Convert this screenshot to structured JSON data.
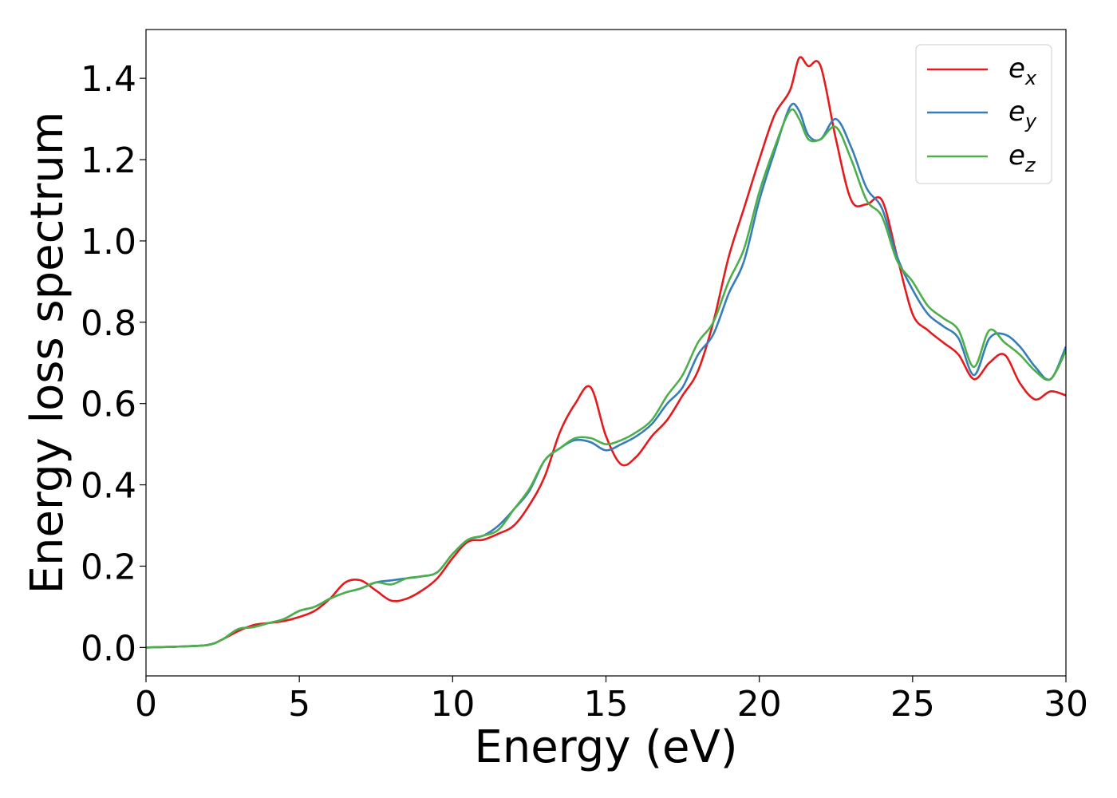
{
  "chart_data": {
    "type": "line",
    "title": "",
    "xlabel": "Energy (eV)",
    "ylabel": "Energy loss spectrum",
    "xlim": [
      0,
      30
    ],
    "ylim": [
      -0.07,
      1.52
    ],
    "xticks": [
      0,
      5,
      10,
      15,
      20,
      25,
      30
    ],
    "xtick_labels": [
      "0",
      "5",
      "10",
      "15",
      "20",
      "25",
      "30"
    ],
    "yticks": [
      0.0,
      0.2,
      0.4,
      0.6,
      0.8,
      1.0,
      1.2,
      1.4
    ],
    "ytick_labels": [
      "0.0",
      "0.2",
      "0.4",
      "0.6",
      "0.8",
      "1.0",
      "1.2",
      "1.4"
    ],
    "grid": false,
    "legend": "top-right",
    "series": [
      {
        "name": "e_x",
        "label_main": "e",
        "label_sub": "x",
        "color": "#e41a1c",
        "x": [
          0,
          1,
          2,
          2.5,
          3,
          3.5,
          4,
          4.5,
          5,
          5.5,
          6,
          6.5,
          7,
          7.5,
          8,
          8.5,
          9,
          9.5,
          10,
          10.5,
          11,
          11.5,
          12,
          12.5,
          13,
          13.5,
          14,
          14.5,
          15,
          15.5,
          16,
          16.5,
          17,
          17.5,
          18,
          18.5,
          19,
          19.5,
          20,
          20.5,
          21,
          21.3,
          21.6,
          22,
          22.5,
          23,
          23.5,
          24,
          24.5,
          25,
          25.5,
          26,
          26.5,
          27,
          27.5,
          28,
          28.5,
          29,
          29.5,
          30
        ],
        "y": [
          0.0,
          0.002,
          0.006,
          0.02,
          0.04,
          0.055,
          0.06,
          0.065,
          0.075,
          0.09,
          0.12,
          0.16,
          0.165,
          0.14,
          0.115,
          0.12,
          0.14,
          0.17,
          0.22,
          0.26,
          0.265,
          0.28,
          0.3,
          0.35,
          0.42,
          0.53,
          0.6,
          0.64,
          0.52,
          0.45,
          0.47,
          0.52,
          0.56,
          0.62,
          0.68,
          0.8,
          0.96,
          1.08,
          1.2,
          1.31,
          1.37,
          1.45,
          1.43,
          1.43,
          1.25,
          1.1,
          1.09,
          1.1,
          0.96,
          0.82,
          0.78,
          0.75,
          0.72,
          0.66,
          0.7,
          0.72,
          0.65,
          0.61,
          0.63,
          0.62
        ]
      },
      {
        "name": "e_y",
        "label_main": "e",
        "label_sub": "y",
        "color": "#377eb8",
        "x": [
          0,
          1,
          2,
          2.5,
          3,
          3.5,
          4,
          4.5,
          5,
          5.5,
          6,
          6.5,
          7,
          7.5,
          8,
          8.5,
          9,
          9.5,
          10,
          10.5,
          11,
          11.5,
          12,
          12.5,
          13,
          13.5,
          14,
          14.5,
          15,
          15.5,
          16,
          16.5,
          17,
          17.5,
          18,
          18.5,
          19,
          19.5,
          20,
          20.5,
          21,
          21.3,
          21.6,
          22,
          22.5,
          23,
          23.5,
          24,
          24.5,
          25,
          25.5,
          26,
          26.5,
          27,
          27.5,
          28,
          28.5,
          29,
          29.5,
          30
        ],
        "y": [
          0.0,
          0.002,
          0.006,
          0.02,
          0.045,
          0.05,
          0.06,
          0.07,
          0.09,
          0.1,
          0.12,
          0.135,
          0.145,
          0.16,
          0.165,
          0.17,
          0.175,
          0.185,
          0.23,
          0.265,
          0.275,
          0.3,
          0.34,
          0.385,
          0.46,
          0.49,
          0.51,
          0.505,
          0.485,
          0.5,
          0.52,
          0.55,
          0.6,
          0.64,
          0.72,
          0.77,
          0.87,
          0.95,
          1.1,
          1.22,
          1.33,
          1.32,
          1.26,
          1.25,
          1.3,
          1.23,
          1.13,
          1.08,
          0.96,
          0.88,
          0.82,
          0.79,
          0.76,
          0.67,
          0.76,
          0.77,
          0.74,
          0.69,
          0.66,
          0.74
        ]
      },
      {
        "name": "e_z",
        "label_main": "e",
        "label_sub": "z",
        "color": "#4daf4a",
        "x": [
          0,
          1,
          2,
          2.5,
          3,
          3.5,
          4,
          4.5,
          5,
          5.5,
          6,
          6.5,
          7,
          7.5,
          8,
          8.5,
          9,
          9.5,
          10,
          10.5,
          11,
          11.5,
          12,
          12.5,
          13,
          13.5,
          14,
          14.5,
          15,
          15.5,
          16,
          16.5,
          17,
          17.5,
          18,
          18.5,
          19,
          19.5,
          20,
          20.5,
          21,
          21.3,
          21.6,
          22,
          22.5,
          23,
          23.5,
          24,
          24.5,
          25,
          25.5,
          26,
          26.5,
          27,
          27.5,
          28,
          28.5,
          29,
          29.5,
          30
        ],
        "y": [
          0.0,
          0.002,
          0.006,
          0.02,
          0.045,
          0.05,
          0.06,
          0.07,
          0.09,
          0.1,
          0.12,
          0.135,
          0.145,
          0.16,
          0.155,
          0.17,
          0.175,
          0.185,
          0.23,
          0.265,
          0.275,
          0.29,
          0.34,
          0.39,
          0.46,
          0.49,
          0.515,
          0.515,
          0.5,
          0.51,
          0.53,
          0.56,
          0.62,
          0.67,
          0.75,
          0.8,
          0.9,
          0.98,
          1.12,
          1.23,
          1.32,
          1.3,
          1.25,
          1.25,
          1.28,
          1.2,
          1.1,
          1.06,
          0.95,
          0.9,
          0.84,
          0.81,
          0.78,
          0.69,
          0.78,
          0.75,
          0.72,
          0.68,
          0.66,
          0.73
        ]
      }
    ]
  }
}
